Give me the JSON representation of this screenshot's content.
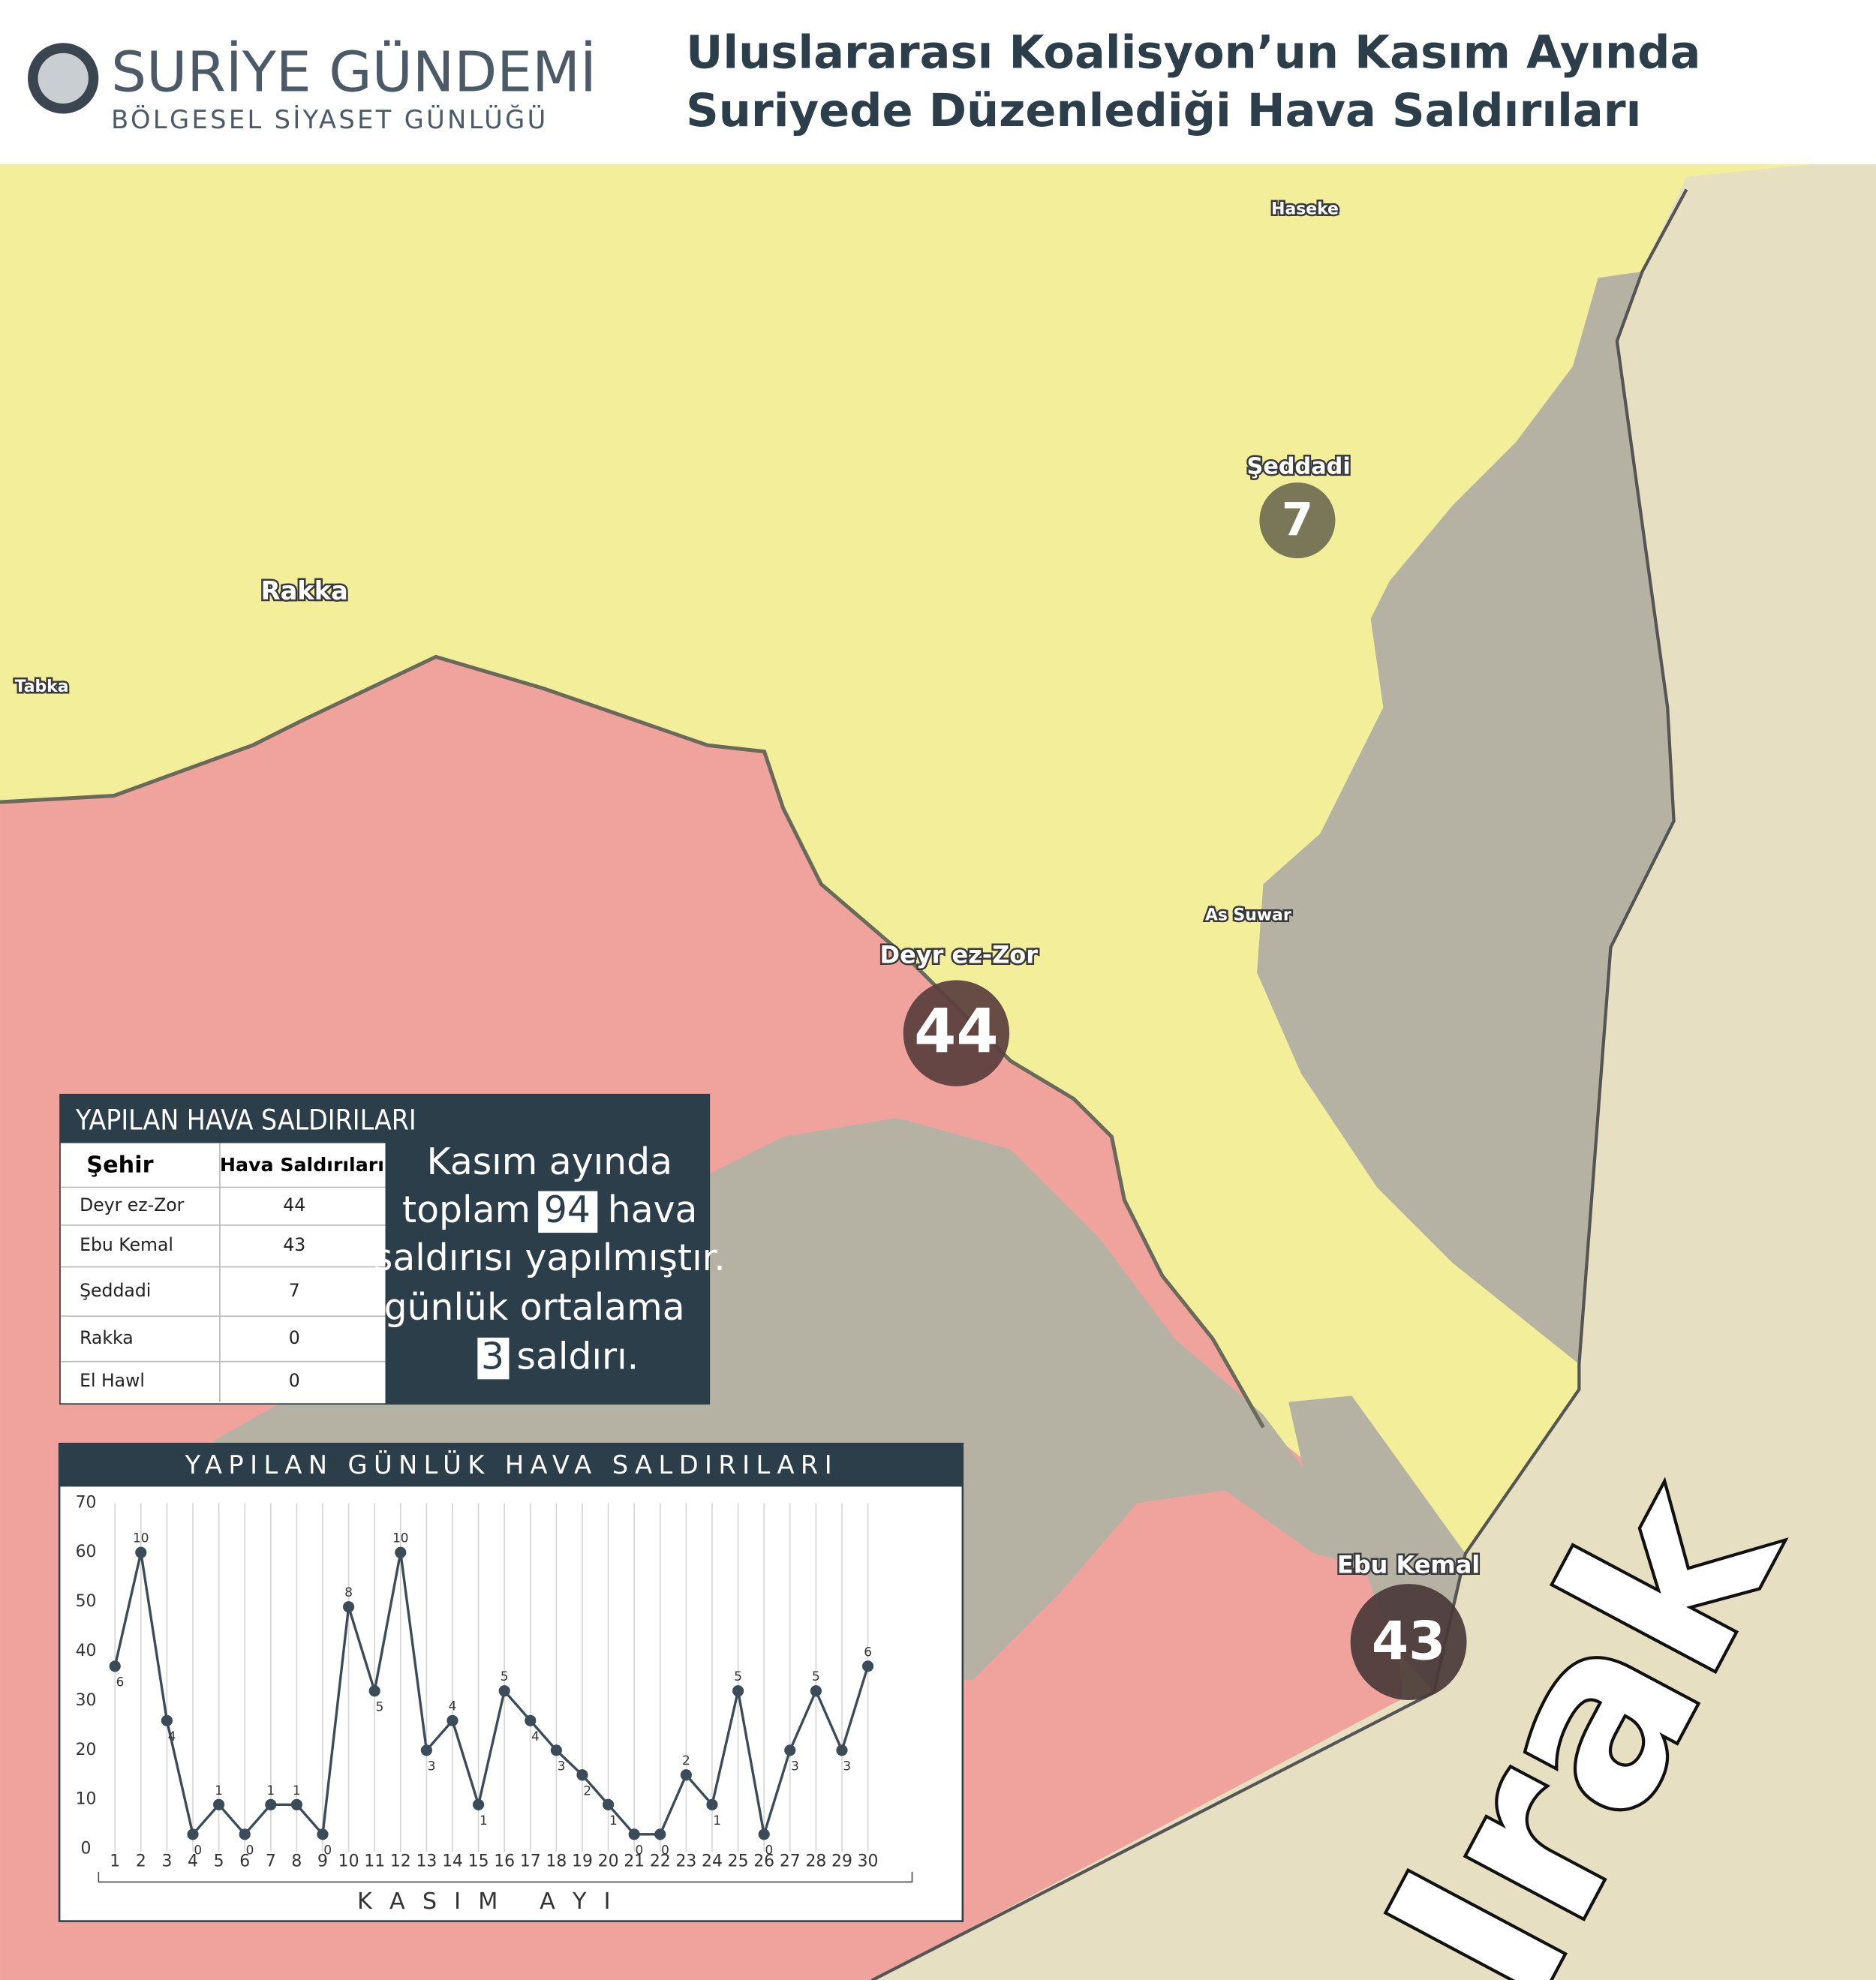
{
  "header": {
    "logo_title": "SURİYE GÜNDEMİ",
    "logo_subtitle": "BÖLGESEL SİYASET GÜNLÜĞÜ",
    "title_line1": "Uluslararası Koalisyon’un Kasım Ayında",
    "title_line2": "Suriyede Düzenlediği Hava Saldırıları"
  },
  "map": {
    "places": [
      "Haseke",
      "Rakka",
      "Tabka",
      "As Suwar",
      "Irak"
    ],
    "markers": [
      {
        "name": "Şeddadi",
        "value": 7
      },
      {
        "name": "Deyr ez-Zor",
        "value": 44
      },
      {
        "name": "Ebu Kemal",
        "value": 43
      }
    ]
  },
  "table": {
    "title": "YAPILAN HAVA SALDIRILARI",
    "header": [
      "Şehir",
      "Hava Saldırıları"
    ],
    "rows": [
      [
        "Deyr ez-Zor",
        44
      ],
      [
        "Ebu Kemal",
        43
      ],
      [
        "Şeddadi",
        7
      ],
      [
        "Rakka",
        0
      ],
      [
        "El Hawl",
        0
      ]
    ]
  },
  "summary": {
    "line1": "Kasım ayında",
    "line2_before": "toplam",
    "total": 94,
    "line2_after": "hava",
    "line3": "saldırısı yapılmıştır.",
    "line4": "günlük ortalama",
    "average": 3,
    "line5_after": "saldırı."
  },
  "chart_data": {
    "type": "line",
    "title": "YAPILAN GÜNLÜK HAVA SALDIRILARI",
    "x_label": "K A S I M   A Y I",
    "x": [
      1,
      2,
      3,
      4,
      5,
      6,
      7,
      8,
      9,
      10,
      11,
      12,
      13,
      14,
      15,
      16,
      17,
      18,
      19,
      20,
      21,
      22,
      23,
      24,
      25,
      26,
      27,
      28,
      29,
      30
    ],
    "xlim": [
      1,
      30
    ],
    "xticks": [
      1,
      2,
      3,
      4,
      5,
      6,
      7,
      8,
      9,
      10,
      11,
      12,
      13,
      14,
      15,
      16,
      17,
      18,
      19,
      20,
      21,
      22,
      23,
      24,
      25,
      26,
      27,
      28,
      29,
      30
    ],
    "ylim": [
      0,
      70
    ],
    "yticks": [
      0,
      10,
      20,
      30,
      40,
      50,
      60,
      70
    ],
    "grid": true,
    "color": "#3b4b57",
    "values": [
      37,
      60,
      26,
      3,
      9,
      3,
      9,
      9,
      3,
      49,
      32,
      60,
      20,
      26,
      9,
      32,
      26,
      20,
      15,
      9,
      3,
      3,
      15,
      9,
      32,
      3,
      20,
      32,
      20,
      37
    ],
    "point_labels": [
      6,
      10,
      4,
      0,
      1,
      0,
      1,
      1,
      0,
      8,
      5,
      10,
      3,
      4,
      1,
      5,
      4,
      3,
      2,
      1,
      0,
      0,
      2,
      1,
      5,
      0,
      3,
      5,
      3,
      6
    ]
  }
}
